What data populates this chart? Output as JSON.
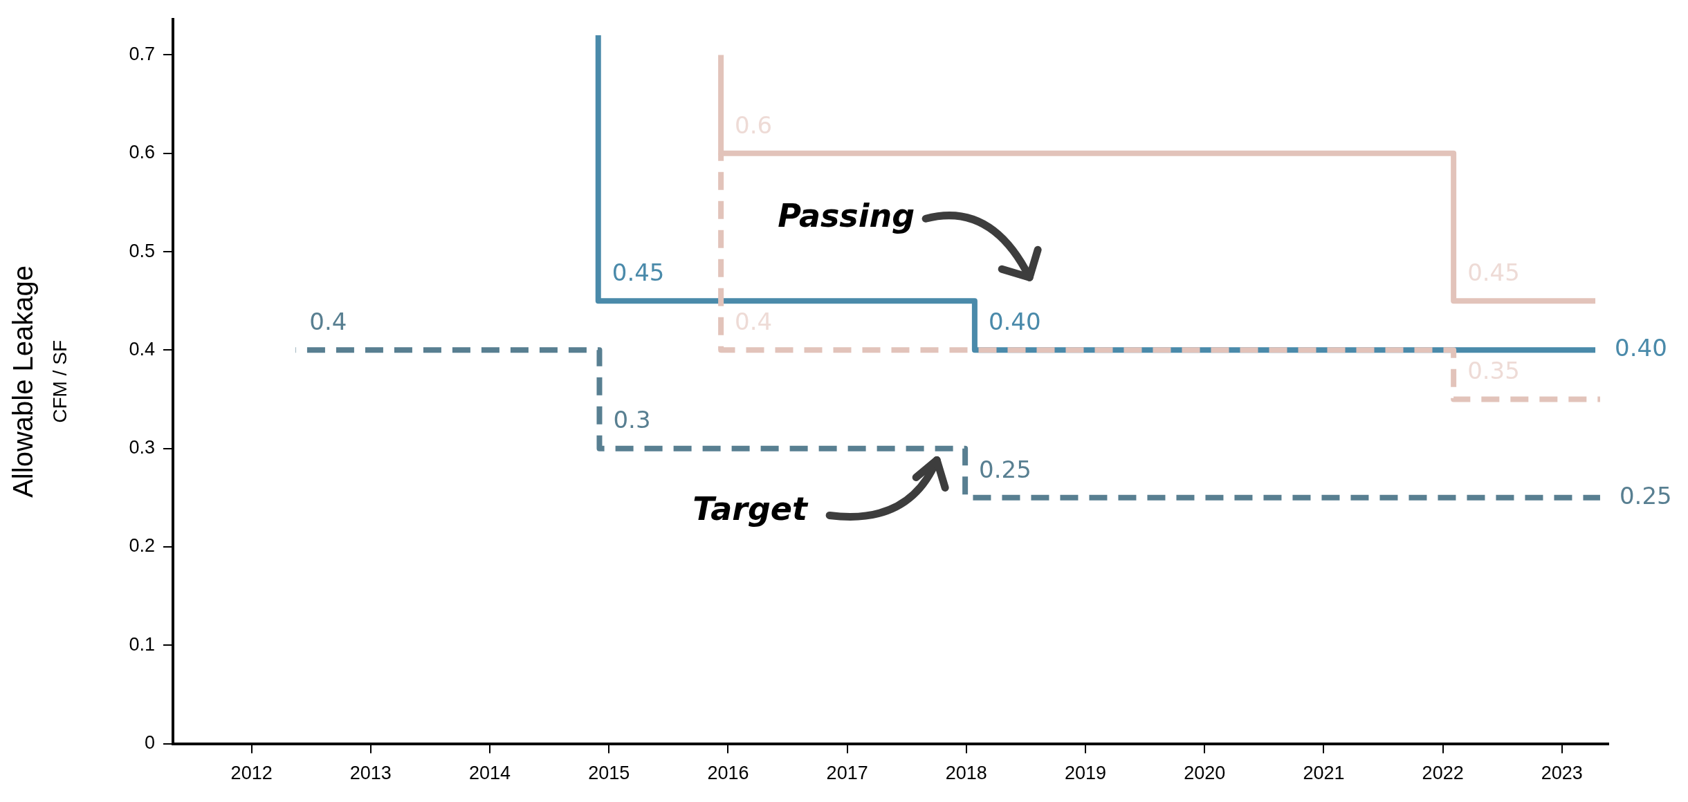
{
  "chart_data": {
    "type": "step",
    "ylabel": "Allowable Leakage\nCFM / SF",
    "xlim": [
      2011.34,
      2023.39
    ],
    "xticks": [
      2012,
      2013,
      2014,
      2015,
      2016,
      2017,
      2018,
      2019,
      2020,
      2021,
      2022,
      2023
    ],
    "ylim": [
      0,
      0.736
    ],
    "yticks": [
      0,
      0.1,
      0.2,
      0.3,
      0.4,
      0.5,
      0.6,
      0.7
    ],
    "series": [
      {
        "color": "#e2c3ba",
        "line_style": "solid",
        "x": [
          2015.94,
          2015.94,
          2022.09,
          2023.28
        ],
        "values": [
          0.7,
          0.6,
          0.45,
          0.45
        ],
        "value_labels": [
          null,
          "0.6",
          "0.45",
          null
        ]
      },
      {
        "color": "#e2c3ba",
        "line_style": "dashed",
        "x": [
          2015.94,
          2015.94,
          2022.09,
          2023.32
        ],
        "values": [
          0.6,
          0.4,
          0.35,
          0.35
        ],
        "value_labels": [
          null,
          "0.4",
          "0.35",
          null
        ]
      },
      {
        "color": "#4a8aaa",
        "line_style": "solid",
        "x": [
          2014.91,
          2014.91,
          2018.07,
          2023.28
        ],
        "values": [
          0.72,
          0.45,
          0.4,
          0.4
        ],
        "value_labels": [
          null,
          "0.45",
          "0.40",
          "0.40"
        ]
      },
      {
        "color": "#587f91",
        "line_style": "dashed",
        "x": [
          2012.37,
          2014.92,
          2017.99,
          2023.32
        ],
        "values": [
          0.4,
          0.3,
          0.25,
          0.25
        ],
        "value_labels": [
          "0.4",
          "0.3",
          "0.25",
          "0.25"
        ]
      }
    ],
    "annotations": [
      "Passing",
      "Target"
    ]
  }
}
